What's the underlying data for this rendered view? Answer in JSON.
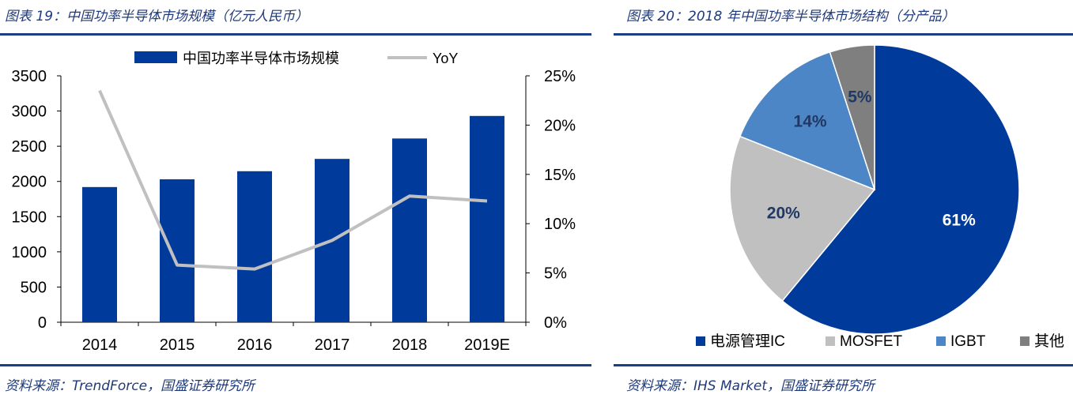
{
  "left": {
    "title": "图表 19：中国功率半导体市场规模（亿元人民币）",
    "source": "资料来源：TrendForce，国盛证券研究所"
  },
  "right": {
    "title": "图表 20：2018 年中国功率半导体市场结构（分产品）",
    "source": "资料来源：IHS Market，国盛证券研究所"
  },
  "colors": {
    "bar": "#003b9c",
    "line": "#c0c0c0",
    "rule": "#1a3f86"
  },
  "chart_data": [
    {
      "type": "bar",
      "title": "",
      "categories": [
        "2014",
        "2015",
        "2016",
        "2017",
        "2018",
        "2019E"
      ],
      "series": [
        {
          "name": "中国功率半导体市场规模",
          "type": "bar",
          "axis": "left",
          "values": [
            1920,
            2030,
            2145,
            2320,
            2610,
            2930
          ]
        },
        {
          "name": "YoY",
          "type": "line",
          "axis": "right",
          "values": [
            23.5,
            5.8,
            5.4,
            8.3,
            12.8,
            12.3
          ]
        }
      ],
      "ylim": [
        0,
        3500
      ],
      "yticks": [
        "3500",
        "3000",
        "2500",
        "2000",
        "1500",
        "1000",
        "500",
        "0"
      ],
      "y2lim": [
        0,
        25
      ],
      "y2ticks": [
        "25%",
        "20%",
        "15%",
        "10%",
        "5%",
        "0%"
      ],
      "legend": "top"
    },
    {
      "type": "pie",
      "title": "",
      "start": "12 o'clock, clockwise",
      "slices": [
        {
          "label": "电源管理IC",
          "value": 61,
          "text": "61%",
          "color": "#003b9c",
          "text_color": "#ffffff"
        },
        {
          "label": "MOSFET",
          "value": 20,
          "text": "20%",
          "color": "#c0c0c0",
          "text_color": "#1f3864"
        },
        {
          "label": "IGBT",
          "value": 14,
          "text": "14%",
          "color": "#4d86c6",
          "text_color": "#1f3864"
        },
        {
          "label": "其他",
          "value": 5,
          "text": "5%",
          "color": "#7f7f7f",
          "text_color": "#1f3864"
        }
      ],
      "legend": "bottom"
    }
  ]
}
